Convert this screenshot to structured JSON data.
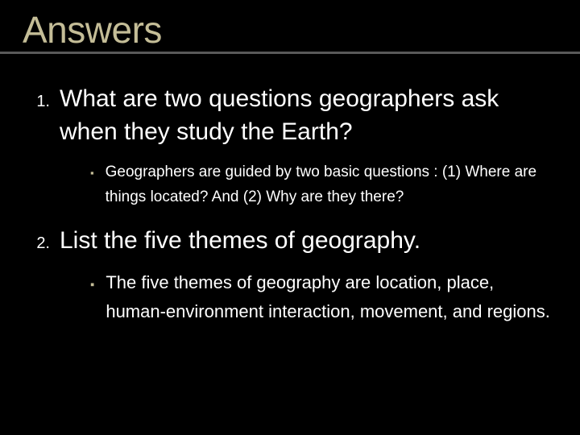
{
  "title": "Answers",
  "title_color": "#c4bd97",
  "title_fontsize": 46,
  "divider_color": "#595959",
  "background_color": "#000000",
  "questions": [
    {
      "number": "1.",
      "number_fontsize": 20,
      "text": "What are two questions geographers ask when they study the Earth?",
      "text_fontsize": 30,
      "answers": [
        {
          "text": "Geographers are guided by two basic questions : (1) Where are things located? And (2) Why are they there?",
          "fontsize": 19,
          "bullet": "▪",
          "bullet_color": "#c4bd97"
        }
      ]
    },
    {
      "number": "2.",
      "number_fontsize": 20,
      "text": "List the five themes of geography.",
      "text_fontsize": 30,
      "answers": [
        {
          "text": "The five themes of geography are location, place, human-environment interaction, movement, and regions.",
          "fontsize": 22,
          "bullet": "▪",
          "bullet_color": "#c4bd97"
        }
      ]
    }
  ]
}
